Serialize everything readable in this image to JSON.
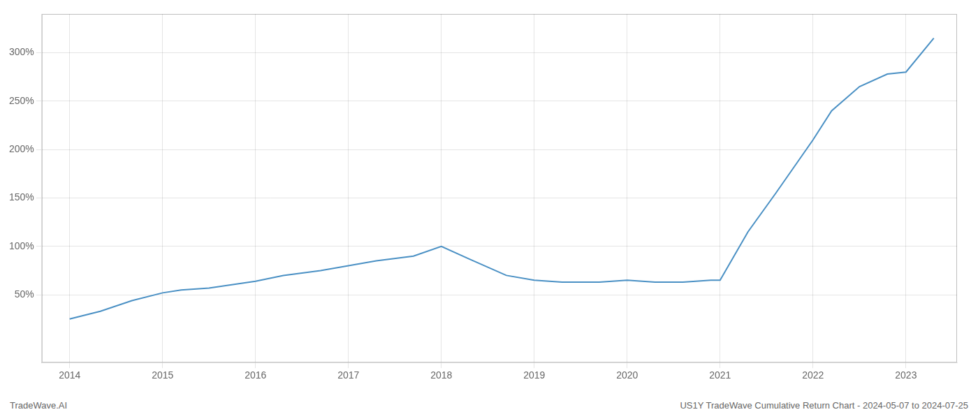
{
  "chart_data": {
    "type": "line",
    "annotations": [
      "TradeWave.AI",
      "US1Y TradeWave Cumulative Return Chart - 2024-05-07 to 2024-07-25"
    ],
    "x": [
      2014.0,
      2014.33,
      2014.67,
      2015.0,
      2015.2,
      2015.5,
      2016.0,
      2016.3,
      2016.7,
      2017.0,
      2017.3,
      2017.7,
      2018.0,
      2018.3,
      2018.7,
      2019.0,
      2019.3,
      2019.7,
      2020.0,
      2020.3,
      2020.6,
      2020.9,
      2021.0,
      2021.3,
      2021.6,
      2022.0,
      2022.2,
      2022.5,
      2022.8,
      2023.0,
      2023.3
    ],
    "values": [
      25,
      33,
      44,
      52,
      55,
      57,
      64,
      70,
      75,
      80,
      85,
      90,
      100,
      87,
      70,
      65,
      63,
      63,
      65,
      63,
      63,
      65,
      65,
      115,
      155,
      210,
      240,
      265,
      278,
      280,
      315
    ],
    "color": "#4a90c4",
    "xlim": [
      2013.7,
      2023.55
    ],
    "ylim": [
      -20,
      340
    ],
    "xticks": [
      2014,
      2015,
      2016,
      2017,
      2018,
      2019,
      2020,
      2021,
      2022,
      2023
    ],
    "yticks": [
      {
        "value": 50,
        "label": "50%"
      },
      {
        "value": 100,
        "label": "100%"
      },
      {
        "value": 150,
        "label": "150%"
      },
      {
        "value": 200,
        "label": "200%"
      },
      {
        "value": 250,
        "label": "250%"
      },
      {
        "value": 300,
        "label": "300%"
      }
    ],
    "grid": true
  }
}
